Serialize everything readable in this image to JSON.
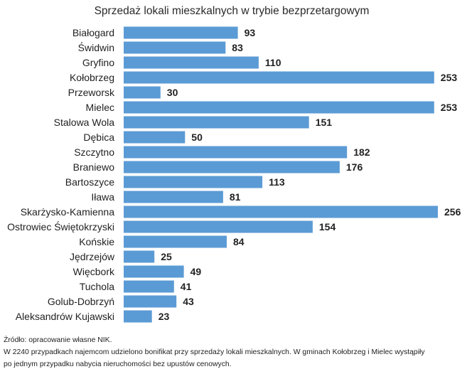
{
  "chart_data": {
    "type": "bar",
    "orientation": "horizontal",
    "title": "Sprzedaż lokali mieszkalnych w trybie bezprzetargowym",
    "categories": [
      "Białogard",
      "Świdwin",
      "Gryfino",
      "Kołobrzeg",
      "Przeworsk",
      "Mielec",
      "Stalowa Wola",
      "Dębica",
      "Szczytno",
      "Braniewo",
      "Bartoszyce",
      "Iława",
      "Skarżysko-Kamienna",
      "Ostrowiec Świętokrzyski",
      "Końskie",
      "Jędrzejów",
      "Więcbork",
      "Tuchola",
      "Golub-Dobrzyń",
      "Aleksandrów Kujawski"
    ],
    "values": [
      93,
      83,
      110,
      253,
      30,
      253,
      151,
      50,
      182,
      176,
      113,
      81,
      256,
      154,
      84,
      25,
      49,
      41,
      43,
      23
    ],
    "xlim": [
      0,
      256
    ],
    "grid": false,
    "legend": "none",
    "data_labels": true,
    "bar_color": "#5b9bd5"
  },
  "footnote": {
    "lines": [
      "Źródło: opracowanie własne NIK.",
      "W 2240 przypadkach najemcom udzielono bonifikat przy sprzedaży lokali mieszkalnych. W gminach Kołobrzeg i Mielec wystąpiły",
      "po jednym przypadku nabycia nieruchomości bez upustów cenowych."
    ]
  }
}
